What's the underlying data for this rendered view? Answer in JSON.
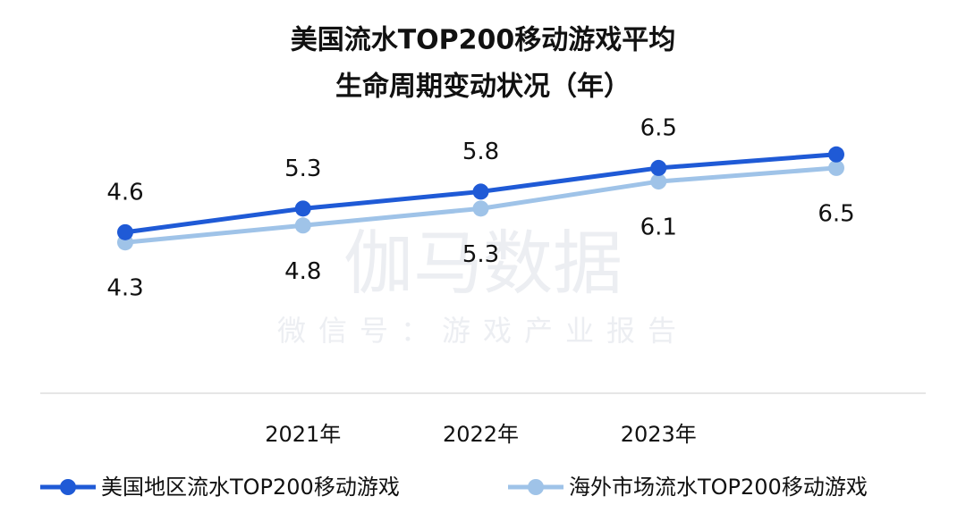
{
  "chart_data": {
    "type": "line",
    "title": [
      "美国流水TOP200移动游戏平均",
      "生命周期变动状况（年）"
    ],
    "watermark": [
      "伽马数据",
      "微信号：游戏产业报告"
    ],
    "categories": [
      null,
      "2021年",
      "2022年",
      "2023年",
      null
    ],
    "series": [
      {
        "name": "美国地区流水TOP200移动游戏",
        "color": "#1f5ad6",
        "values": [
          4.6,
          5.3,
          5.8,
          6.5,
          6.9
        ],
        "value_labels": [
          "4.6",
          "5.3",
          "5.8",
          "6.5",
          null
        ]
      },
      {
        "name": "海外市场流水TOP200移动游戏",
        "color": "#9fc3e8",
        "values": [
          4.3,
          4.8,
          5.3,
          6.1,
          6.5
        ]
      }
    ],
    "ylim": [
      0,
      11.2
    ]
  }
}
